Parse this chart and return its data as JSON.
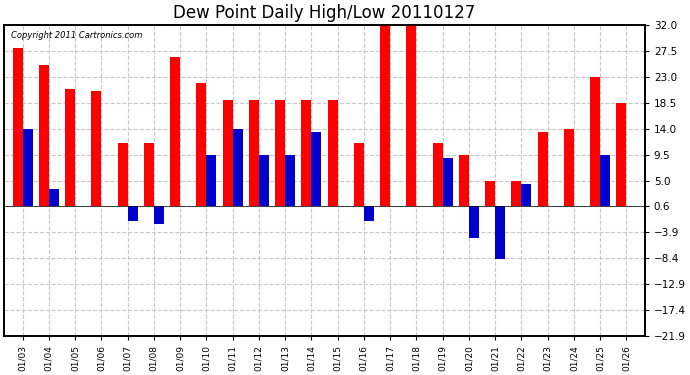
{
  "title": "Dew Point Daily High/Low 20110127",
  "copyright": "Copyright 2011 Cartronics.com",
  "dates": [
    "01/03",
    "01/04",
    "01/05",
    "01/06",
    "01/07",
    "01/08",
    "01/09",
    "01/10",
    "01/11",
    "01/12",
    "01/13",
    "01/14",
    "01/15",
    "01/16",
    "01/17",
    "01/18",
    "01/19",
    "01/20",
    "01/21",
    "01/22",
    "01/23",
    "01/24",
    "01/25",
    "01/26"
  ],
  "highs": [
    28.0,
    25.0,
    21.0,
    20.5,
    11.5,
    11.5,
    26.5,
    22.0,
    19.0,
    19.0,
    19.0,
    19.0,
    19.0,
    11.5,
    32.0,
    32.0,
    11.5,
    9.5,
    5.0,
    5.0,
    13.5,
    14.0,
    23.0,
    18.5
  ],
  "lows": [
    14.0,
    3.5,
    0.6,
    0.6,
    -2.0,
    -2.5,
    0.6,
    9.5,
    14.0,
    9.5,
    9.5,
    13.5,
    0.6,
    -2.0,
    0.6,
    0.6,
    9.0,
    -5.0,
    -8.5,
    4.5,
    0.6,
    0.6,
    9.5,
    0.6
  ],
  "ylim": [
    -21.9,
    32.0
  ],
  "yticks": [
    32.0,
    27.5,
    23.0,
    18.5,
    14.0,
    9.5,
    5.0,
    0.6,
    -3.9,
    -8.4,
    -12.9,
    -17.4,
    -21.9
  ],
  "bar_width": 0.38,
  "high_color": "#ff0000",
  "low_color": "#0000cc",
  "background_color": "#ffffff",
  "grid_color": "#c8c8c8",
  "title_fontsize": 12
}
